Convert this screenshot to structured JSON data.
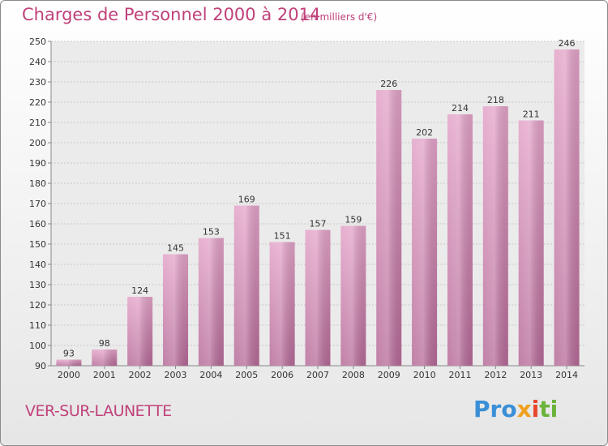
{
  "chart_data": {
    "type": "bar",
    "title": "Charges de Personnel 2000 à 2014",
    "subtitle": "(en milliers d'€)",
    "categories": [
      "2000",
      "2001",
      "2002",
      "2003",
      "2004",
      "2005",
      "2006",
      "2007",
      "2008",
      "2009",
      "2010",
      "2011",
      "2012",
      "2013",
      "2014"
    ],
    "values": [
      93,
      98,
      124,
      145,
      153,
      169,
      151,
      157,
      159,
      226,
      202,
      214,
      218,
      211,
      246
    ],
    "ylim": [
      90,
      250
    ],
    "yticks": [
      90,
      100,
      110,
      120,
      130,
      140,
      150,
      160,
      170,
      180,
      190,
      200,
      210,
      220,
      230,
      240,
      250
    ],
    "grid": true,
    "legend": "none",
    "bar_color": "#d98db8"
  },
  "town": "VER-SUR-LAUNETTE",
  "logo": {
    "p1": "Pro",
    "p2": "x",
    "p3": "i",
    "p4": "ti"
  },
  "colors": {
    "title": "#c0417a",
    "bar": "#d98db8",
    "bar_dark": "#b8679a"
  }
}
